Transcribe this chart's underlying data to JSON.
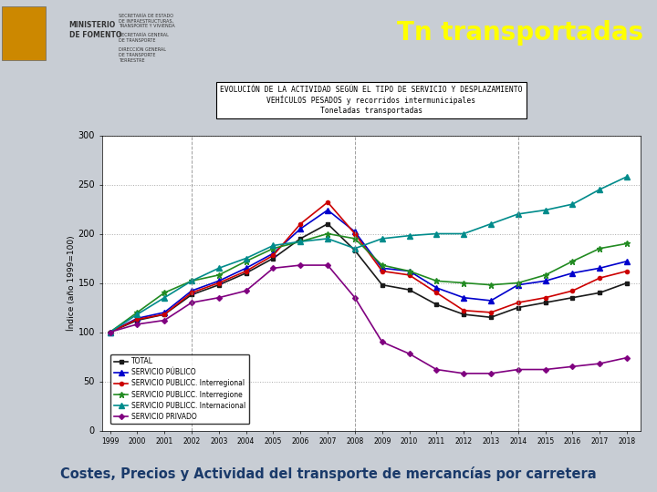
{
  "title_line1": "EVOLUCIÓN DE LA ACTIVIDAD SEGÚN EL TIPO DE SERVICIO Y DESPLAZAMIENTO",
  "title_line2": "VEHÍCULOS PESADOS y recorridos intermunicipales",
  "title_line3": "Toneladas transportadas",
  "header_title": "Tn transportadas",
  "footer_text": "Costes, Precios y Actividad del transporte de mercancías por carretera",
  "ylabel": "Índice (año 1999=100)",
  "years": [
    1999,
    2000,
    2001,
    2002,
    2003,
    2004,
    2005,
    2006,
    2007,
    2008,
    2009,
    2010,
    2011,
    2012,
    2013,
    2014,
    2015,
    2016,
    2017,
    2018
  ],
  "series_order": [
    "TOTAL",
    "SERVICIO PÚBLICO",
    "SERVICIO PUBLICC. Interregional",
    "SERVICIO PUBLICC. Interregione",
    "SERVICIO PUBLICC. Internacional",
    "SERVICIO PRIVADO"
  ],
  "series": {
    "TOTAL": {
      "color": "#1a1a1a",
      "marker": "s",
      "markersize": 3,
      "linewidth": 1.2,
      "values": [
        100,
        112,
        118,
        138,
        148,
        160,
        175,
        195,
        210,
        183,
        148,
        143,
        128,
        118,
        115,
        125,
        130,
        135,
        140,
        150
      ]
    },
    "SERVICIO PÚBLICO": {
      "color": "#0000cc",
      "marker": "^",
      "markersize": 4,
      "linewidth": 1.2,
      "values": [
        100,
        114,
        120,
        142,
        152,
        165,
        180,
        205,
        224,
        202,
        165,
        162,
        145,
        135,
        132,
        148,
        152,
        160,
        165,
        172
      ]
    },
    "SERVICIO PUBLICC. Interregional": {
      "color": "#cc0000",
      "marker": "o",
      "markersize": 3,
      "linewidth": 1.2,
      "values": [
        100,
        113,
        118,
        140,
        150,
        162,
        178,
        210,
        232,
        200,
        162,
        158,
        140,
        122,
        120,
        130,
        135,
        142,
        155,
        162
      ]
    },
    "SERVICIO PUBLICC. Interregione": {
      "color": "#228B22",
      "marker": "*",
      "markersize": 5,
      "linewidth": 1.2,
      "values": [
        100,
        120,
        140,
        152,
        158,
        172,
        185,
        192,
        200,
        195,
        168,
        162,
        152,
        150,
        148,
        150,
        158,
        172,
        185,
        190
      ]
    },
    "SERVICIO PUBLICC. Internacional": {
      "color": "#008B8B",
      "marker": "^",
      "markersize": 4,
      "linewidth": 1.2,
      "values": [
        100,
        118,
        135,
        152,
        165,
        175,
        188,
        192,
        195,
        185,
        195,
        198,
        200,
        200,
        210,
        220,
        224,
        230,
        245,
        258
      ]
    },
    "SERVICIO PRIVADO": {
      "color": "#800080",
      "marker": "D",
      "markersize": 3,
      "linewidth": 1.2,
      "values": [
        100,
        108,
        112,
        130,
        135,
        142,
        165,
        168,
        168,
        135,
        90,
        78,
        62,
        58,
        58,
        62,
        62,
        65,
        68,
        74
      ]
    }
  },
  "ylim": [
    0,
    300
  ],
  "yticks": [
    0,
    50,
    100,
    150,
    200,
    250,
    300
  ],
  "bg_color": "#c8cdd4",
  "chart_bg": "#ffffff",
  "header_right_bg": "#b0bec5",
  "header_left_bg": "#e8e8e8",
  "footer_bg": "#b8960c",
  "footer_text_color": "#1a3a6a",
  "vlines": [
    2002,
    2008,
    2014
  ]
}
